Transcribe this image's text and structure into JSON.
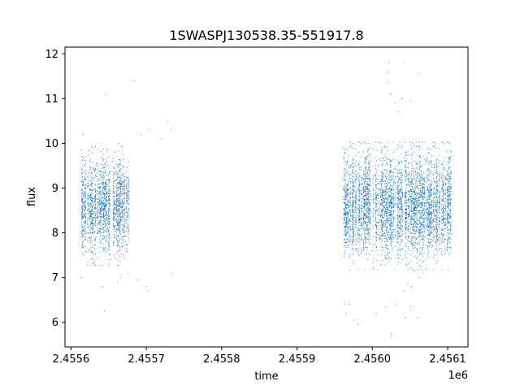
{
  "chart_data": {
    "type": "scatter",
    "title": "1SWASPJ130538.35-551917.8",
    "xlabel": "time",
    "ylabel": "flux",
    "x_offset_label": "1e6",
    "xlim": [
      2455592,
      2456127
    ],
    "ylim": [
      5.45,
      12.15
    ],
    "x_ticks": [
      2455600,
      2455700,
      2455800,
      2455900,
      2456000,
      2456100
    ],
    "x_tick_labels": [
      "2.4556",
      "2.4557",
      "2.4558",
      "2.4559",
      "2.4560",
      "2.4561"
    ],
    "y_ticks": [
      6,
      7,
      8,
      9,
      10,
      11,
      12
    ],
    "y_tick_labels": [
      "6",
      "7",
      "8",
      "9",
      "10",
      "11",
      "12"
    ],
    "grid": false,
    "marker_color": "#1f77b4",
    "series": [
      {
        "name": "",
        "segments": [
          {
            "x_range": [
              2455614,
              2455676
            ],
            "flux_center": 8.6,
            "flux_spread": 0.7
          },
          {
            "x_range": [
              2455962,
              2456104
            ],
            "flux_center": 8.6,
            "flux_spread": 0.75
          }
        ],
        "points": [
          [
            2455614,
            9.85
          ],
          [
            2455614,
            7.0
          ],
          [
            2455616,
            10.2
          ],
          [
            2455617,
            7.5
          ],
          [
            2455619,
            9.7
          ],
          [
            2455622,
            8.0
          ],
          [
            2455625,
            9.6
          ],
          [
            2455628,
            8.1
          ],
          [
            2455630,
            9.4
          ],
          [
            2455633,
            7.9
          ],
          [
            2455635,
            9.5
          ],
          [
            2455637,
            8.2
          ],
          [
            2455640,
            9.3
          ],
          [
            2455642,
            8.0
          ],
          [
            2455645,
            9.4
          ],
          [
            2455648,
            8.3
          ],
          [
            2455650,
            9.2
          ],
          [
            2455652,
            7.4
          ],
          [
            2455655,
            9.6
          ],
          [
            2455657,
            7.9
          ],
          [
            2455660,
            9.1
          ],
          [
            2455662,
            8.2
          ],
          [
            2455664,
            10.0
          ],
          [
            2455666,
            7.0
          ],
          [
            2455668,
            8.5
          ],
          [
            2455670,
            9.3
          ],
          [
            2455672,
            7.8
          ],
          [
            2455674,
            9.0
          ],
          [
            2455676,
            8.4
          ],
          [
            2455642,
            6.8
          ],
          [
            2455644,
            6.25
          ],
          [
            2455646,
            11.1
          ],
          [
            2455684,
            11.4
          ],
          [
            2455676,
            7.1
          ],
          [
            2455693,
            10.2
          ],
          [
            2455700,
            6.8
          ],
          [
            2455703,
            6.7
          ],
          [
            2455662,
            6.9
          ],
          [
            2455688,
            6.95
          ],
          [
            2455704,
            10.3
          ],
          [
            2455721,
            10.1
          ],
          [
            2455728,
            10.5
          ],
          [
            2455733,
            10.3
          ],
          [
            2455735,
            7.1
          ],
          [
            2455962,
            9.7
          ],
          [
            2455965,
            8.2
          ],
          [
            2455968,
            9.1
          ],
          [
            2455970,
            7.8
          ],
          [
            2455972,
            9.5
          ],
          [
            2455975,
            8.0
          ],
          [
            2455978,
            9.2
          ],
          [
            2455980,
            8.4
          ],
          [
            2455982,
            9.8
          ],
          [
            2455985,
            7.9
          ],
          [
            2455988,
            9.0
          ],
          [
            2455990,
            8.1
          ],
          [
            2455993,
            9.4
          ],
          [
            2455995,
            8.3
          ],
          [
            2455998,
            9.6
          ],
          [
            2456000,
            7.6
          ],
          [
            2456003,
            9.3
          ],
          [
            2456005,
            8.0
          ],
          [
            2456008,
            9.5
          ],
          [
            2456010,
            7.9
          ],
          [
            2456013,
            9.2
          ],
          [
            2456015,
            8.2
          ],
          [
            2456018,
            9.7
          ],
          [
            2456020,
            7.5
          ],
          [
            2456023,
            9.0
          ],
          [
            2456025,
            8.4
          ],
          [
            2456028,
            9.8
          ],
          [
            2456030,
            7.7
          ],
          [
            2456033,
            9.4
          ],
          [
            2456035,
            8.0
          ],
          [
            2456038,
            9.1
          ],
          [
            2456040,
            7.4
          ],
          [
            2456043,
            9.6
          ],
          [
            2456045,
            8.1
          ],
          [
            2456048,
            9.3
          ],
          [
            2456050,
            7.8
          ],
          [
            2456053,
            9.5
          ],
          [
            2456055,
            8.2
          ],
          [
            2456058,
            9.0
          ],
          [
            2456060,
            7.6
          ],
          [
            2456063,
            9.7
          ],
          [
            2456065,
            8.0
          ],
          [
            2456068,
            9.2
          ],
          [
            2456070,
            7.9
          ],
          [
            2456073,
            9.4
          ],
          [
            2456075,
            8.3
          ],
          [
            2456078,
            9.1
          ],
          [
            2456080,
            7.7
          ],
          [
            2456083,
            9.5
          ],
          [
            2456085,
            8.1
          ],
          [
            2456088,
            9.3
          ],
          [
            2456090,
            7.9
          ],
          [
            2456093,
            9.0
          ],
          [
            2456095,
            8.4
          ],
          [
            2456098,
            9.2
          ],
          [
            2456100,
            8.0
          ],
          [
            2456102,
            8.8
          ],
          [
            2456104,
            8.5
          ],
          [
            2456020,
            11.6
          ],
          [
            2456022,
            11.8
          ],
          [
            2456021,
            11.35
          ],
          [
            2456042,
            11.8
          ],
          [
            2456063,
            11.55
          ],
          [
            2456024,
            11.1
          ],
          [
            2456030,
            10.9
          ],
          [
            2456035,
            10.7
          ],
          [
            2456051,
            10.95
          ],
          [
            2456040,
            11.0
          ],
          [
            2455963,
            6.4
          ],
          [
            2455965,
            6.2
          ],
          [
            2455970,
            6.4
          ],
          [
            2455975,
            6.05
          ],
          [
            2455981,
            5.95
          ],
          [
            2456005,
            6.2
          ],
          [
            2456018,
            6.35
          ],
          [
            2456025,
            5.75
          ],
          [
            2456032,
            6.4
          ],
          [
            2456044,
            6.1
          ],
          [
            2456051,
            6.35
          ],
          [
            2456060,
            6.1
          ],
          [
            2456042,
            6.7
          ],
          [
            2456047,
            6.85
          ],
          [
            2456052,
            6.8
          ],
          [
            2456056,
            7.15
          ],
          [
            2456062,
            7.0
          ],
          [
            2456068,
            7.1
          ]
        ]
      }
    ]
  }
}
